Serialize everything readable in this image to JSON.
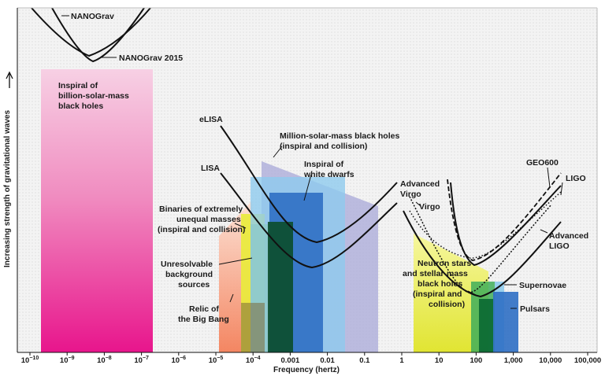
{
  "chart_data": {
    "type": "area",
    "xlabel": "Frequency (hertz)",
    "ylabel": "Increasing strength of gravitational waves",
    "x_scale": "log",
    "xlim_log10": [
      -10.3,
      5.2
    ],
    "tick_labels": [
      {
        "log10": -10,
        "base": "10",
        "exp": "−10"
      },
      {
        "log10": -9,
        "base": "10",
        "exp": "−9"
      },
      {
        "log10": -8,
        "base": "10",
        "exp": "−8"
      },
      {
        "log10": -7,
        "base": "10",
        "exp": "−7"
      },
      {
        "log10": -6,
        "base": "10",
        "exp": "−6"
      },
      {
        "log10": -5,
        "base": "10",
        "exp": "−5"
      },
      {
        "log10": -4,
        "base": "10",
        "exp": "−4"
      },
      {
        "log10": -3,
        "base": "0.001",
        "exp": ""
      },
      {
        "log10": -2,
        "base": "0.01",
        "exp": ""
      },
      {
        "log10": -1,
        "base": "0.1",
        "exp": ""
      },
      {
        "log10": 0,
        "base": "1",
        "exp": ""
      },
      {
        "log10": 1,
        "base": "10",
        "exp": ""
      },
      {
        "log10": 2,
        "base": "100",
        "exp": ""
      },
      {
        "log10": 3,
        "base": "1,000",
        "exp": ""
      },
      {
        "log10": 4,
        "base": "10,000",
        "exp": ""
      },
      {
        "log10": 5,
        "base": "100,000",
        "exp": ""
      }
    ],
    "colors": {
      "background": "#f2f2f2",
      "curve": "#111111",
      "pink": "#e8158c",
      "pink_light": "#f7c8e0",
      "salmon": "#f47a52",
      "yellow": "#e9ec3a",
      "lime": "#8cc63f",
      "green": "#1f8f3f",
      "darkgreen": "#0b4d2a",
      "blue": "#2f6fc4",
      "lightblue": "#8ecbed",
      "lavender": "#a8a8d8",
      "tan": "#7b6a3a"
    },
    "labels": {
      "nanograv": "NANOGrav",
      "nanograv2015": "NANOGrav 2015",
      "billion": [
        "Inspiral of",
        "billion-solar-mass",
        "black holes"
      ],
      "elisa": "eLISA",
      "lisa": "LISA",
      "million": [
        "Million-solar-mass black holes",
        "(inspiral and collision)"
      ],
      "white_dwarfs": [
        "Inspiral of",
        "white dwarfs"
      ],
      "binaries": [
        "Binaries of extremely",
        "unequal masses",
        "(inspiral and collision)"
      ],
      "unresolvable": [
        "Unresolvable",
        "background",
        "sources"
      ],
      "relic": [
        "Relic of",
        "the Big Bang"
      ],
      "adv_virgo": [
        "Advanced",
        "Virgo"
      ],
      "virgo": "Virgo",
      "geo600": "GEO600",
      "ligo": "LIGO",
      "adv_ligo": [
        "Advanced",
        "LIGO"
      ],
      "neutron": [
        "Neutron stars",
        "and stellar-mass",
        "black holes",
        "(inspiral and",
        "collision)"
      ],
      "supernovae": "Supernovae",
      "pulsars": "Pulsars"
    }
  }
}
